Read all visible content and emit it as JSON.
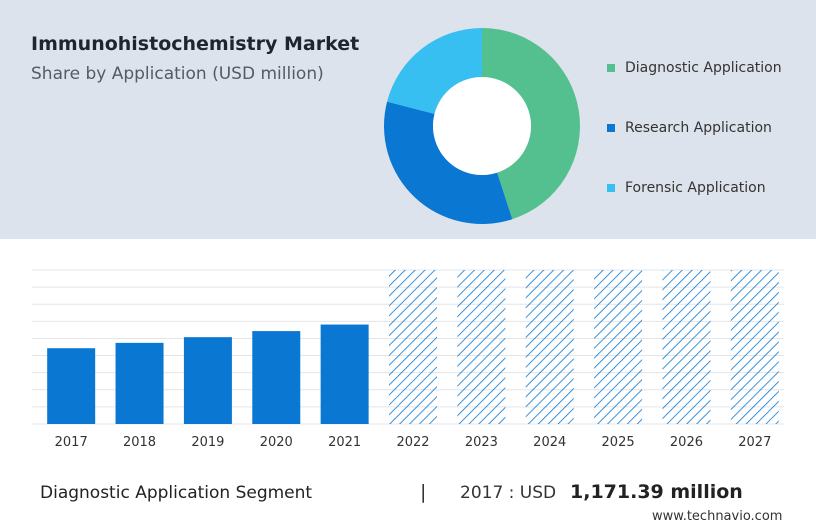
{
  "header": {
    "title": "Immunohistochemistry Market",
    "subtitle": "Share by Application (USD million)"
  },
  "colors": {
    "diagnostic": "#55c08f",
    "research": "#0a78d2",
    "forensic": "#36bff0",
    "bar": "#0a78d2",
    "panel": "#dde3ec"
  },
  "chart_data": [
    {
      "type": "pie",
      "donut": true,
      "slices": [
        {
          "name": "Diagnostic Application",
          "value": 45
        },
        {
          "name": "Research Application",
          "value": 34
        },
        {
          "name": "Forensic Application",
          "value": 21
        }
      ],
      "legend_position": "right"
    },
    {
      "type": "bar",
      "categories": [
        "2017",
        "2018",
        "2019",
        "2020",
        "2021",
        "2022",
        "2023",
        "2024",
        "2025",
        "2026",
        "2027"
      ],
      "values": [
        1171.39,
        1254,
        1342,
        1436,
        1537,
        null,
        null,
        null,
        null,
        null,
        null
      ],
      "forecast_categories": [
        "2022",
        "2023",
        "2024",
        "2025",
        "2026",
        "2027"
      ],
      "forecast_style": "hatched",
      "ylim": [
        0,
        2380
      ],
      "grid": true
    }
  ],
  "footer": {
    "segment_label": "Diagnostic Application Segment",
    "divider": "|",
    "year_text": "2017 : USD",
    "value_text": "1,171.39 million",
    "source": "www.technavio.com"
  }
}
